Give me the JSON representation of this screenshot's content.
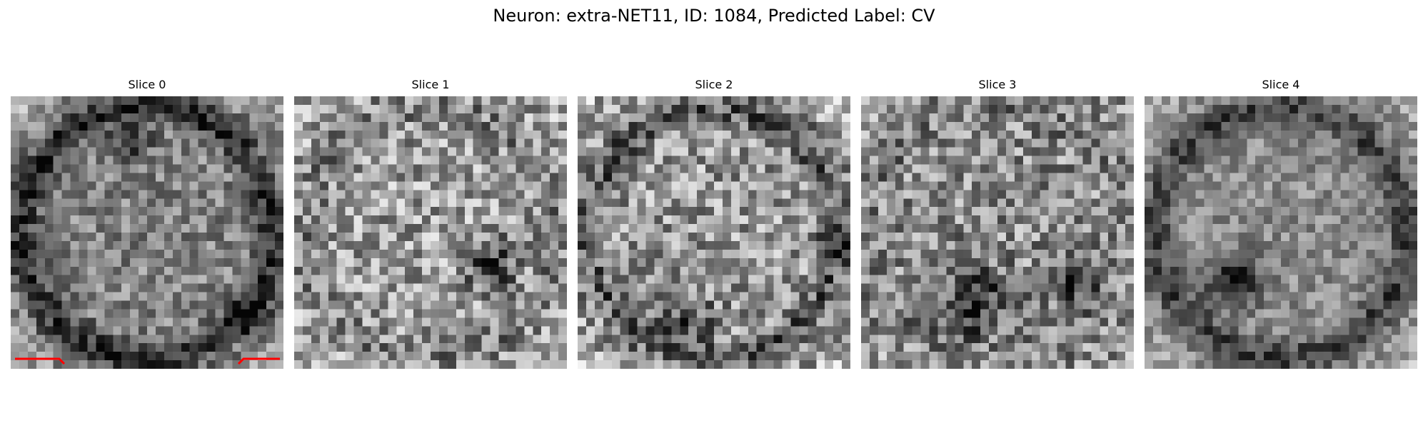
{
  "figure": {
    "title": "Neuron: extra-NET11, ID: 1084, Predicted Label: CV"
  },
  "slices": [
    {
      "title": "Slice 0"
    },
    {
      "title": "Slice 1"
    },
    {
      "title": "Slice 2"
    },
    {
      "title": "Slice 3"
    },
    {
      "title": "Slice 4"
    }
  ],
  "annotation": {
    "color": "#ff0000",
    "location": "bottom corners of Slice 0"
  }
}
